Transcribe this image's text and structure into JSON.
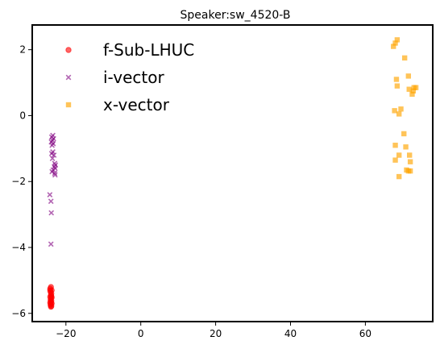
{
  "chart_data": {
    "type": "scatter",
    "title": "Speaker:sw_4520-B",
    "xlabel": "",
    "ylabel": "",
    "xlim": [
      -29,
      78
    ],
    "ylim": [
      -6.25,
      2.75
    ],
    "xticks": [
      -20,
      0,
      20,
      40,
      60
    ],
    "yticks": [
      2,
      0,
      -2,
      -4,
      -6
    ],
    "xtick_labels": [
      "−20",
      "0",
      "20",
      "40",
      "60"
    ],
    "ytick_labels": [
      "2",
      "0",
      "−2",
      "−4",
      "−6"
    ],
    "grid": false,
    "legend_position": "top-left",
    "series": [
      {
        "name": "f-Sub-LHUC",
        "marker": "circle",
        "color": "#ff0000",
        "points": [
          [
            -24.0,
            -5.2
          ],
          [
            -24.2,
            -5.25
          ],
          [
            -23.8,
            -5.3
          ],
          [
            -24.1,
            -5.35
          ],
          [
            -23.9,
            -5.4
          ],
          [
            -24.0,
            -5.45
          ],
          [
            -24.2,
            -5.5
          ],
          [
            -23.8,
            -5.52
          ],
          [
            -24.0,
            -5.55
          ],
          [
            -24.1,
            -5.6
          ],
          [
            -23.9,
            -5.62
          ],
          [
            -24.0,
            -5.65
          ],
          [
            -24.2,
            -5.68
          ],
          [
            -23.8,
            -5.7
          ],
          [
            -24.0,
            -5.72
          ],
          [
            -24.1,
            -5.75
          ],
          [
            -23.9,
            -5.78
          ],
          [
            -24.0,
            -5.8
          ],
          [
            -24.2,
            -5.3
          ],
          [
            -23.9,
            -5.48
          ]
        ]
      },
      {
        "name": "i-vector",
        "marker": "x",
        "color": "#800080",
        "points": [
          [
            -23.5,
            -0.6
          ],
          [
            -23.8,
            -0.65
          ],
          [
            -23.3,
            -0.7
          ],
          [
            -23.6,
            -0.75
          ],
          [
            -23.9,
            -0.8
          ],
          [
            -23.4,
            -0.85
          ],
          [
            -23.7,
            -0.9
          ],
          [
            -23.5,
            -1.1
          ],
          [
            -23.8,
            -1.15
          ],
          [
            -23.2,
            -1.2
          ],
          [
            -23.6,
            -1.3
          ],
          [
            -23.0,
            -1.45
          ],
          [
            -22.8,
            -1.5
          ],
          [
            -23.1,
            -1.55
          ],
          [
            -22.9,
            -1.6
          ],
          [
            -23.4,
            -1.65
          ],
          [
            -23.7,
            -1.7
          ],
          [
            -23.0,
            -1.75
          ],
          [
            -22.9,
            -1.8
          ],
          [
            -24.3,
            -2.4
          ],
          [
            -24.0,
            -2.6
          ],
          [
            -23.9,
            -2.95
          ],
          [
            -24.0,
            -3.9
          ]
        ]
      },
      {
        "name": "x-vector",
        "marker": "square",
        "color": "#ffa500",
        "points": [
          [
            68.5,
            2.3
          ],
          [
            68.0,
            2.2
          ],
          [
            67.5,
            2.1
          ],
          [
            70.5,
            1.75
          ],
          [
            71.5,
            1.2
          ],
          [
            68.3,
            1.1
          ],
          [
            68.5,
            0.9
          ],
          [
            73.0,
            0.85
          ],
          [
            73.5,
            0.85
          ],
          [
            71.7,
            0.8
          ],
          [
            72.8,
            0.75
          ],
          [
            72.5,
            0.65
          ],
          [
            69.5,
            0.2
          ],
          [
            67.8,
            0.15
          ],
          [
            69.0,
            0.05
          ],
          [
            70.3,
            -0.55
          ],
          [
            68.0,
            -0.9
          ],
          [
            70.8,
            -0.95
          ],
          [
            69.0,
            -1.2
          ],
          [
            71.8,
            -1.2
          ],
          [
            68.0,
            -1.35
          ],
          [
            72.0,
            -1.4
          ],
          [
            71.0,
            -1.65
          ],
          [
            71.5,
            -1.68
          ],
          [
            72.0,
            -1.68
          ],
          [
            69.0,
            -1.85
          ]
        ]
      }
    ]
  }
}
